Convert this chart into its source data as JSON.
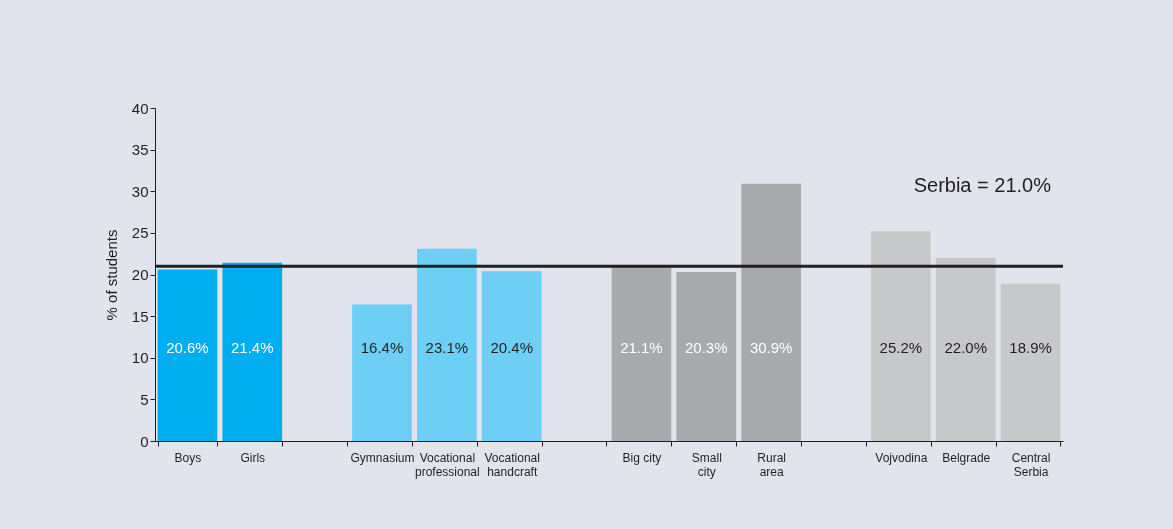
{
  "chart_data": {
    "type": "bar",
    "ylabel": "% of students",
    "categories": [
      "Boys",
      "Girls",
      null,
      "Gymnasium",
      "Vocational\nprofessional",
      "Vocational\nhandcraft",
      null,
      "Big city",
      "Small\ncity",
      "Rural\narea",
      null,
      "Vojvodina",
      "Belgrade",
      "Central\nSerbia"
    ],
    "values": [
      20.6,
      21.4,
      null,
      16.4,
      23.1,
      20.4,
      null,
      21.1,
      20.3,
      30.9,
      null,
      25.2,
      22.0,
      18.9
    ],
    "value_labels": [
      "20.6%",
      "21.4%",
      null,
      "16.4%",
      "23.1%",
      "20.4%",
      null,
      "21.1%",
      "20.3%",
      "30.9%",
      null,
      "25.2%",
      "22.0%",
      "18.9%"
    ],
    "colors": [
      "#00aeef",
      "#00aeef",
      null,
      "#6dcff6",
      "#6dcff6",
      "#6dcff6",
      null,
      "#a7a9ac",
      "#a7a9ac",
      "#a7a9ac",
      null,
      "#c7c8ca",
      "#c7c8ca",
      "#c7c8ca"
    ],
    "ylim": [
      0,
      40
    ],
    "yticks": [
      0,
      5,
      10,
      15,
      20,
      25,
      30,
      35,
      40
    ],
    "ref_lines": [
      {
        "axis": "y",
        "value": 21.0,
        "label": "Serbia = 21.0%",
        "color": "#231f20"
      }
    ],
    "grid": false
  }
}
